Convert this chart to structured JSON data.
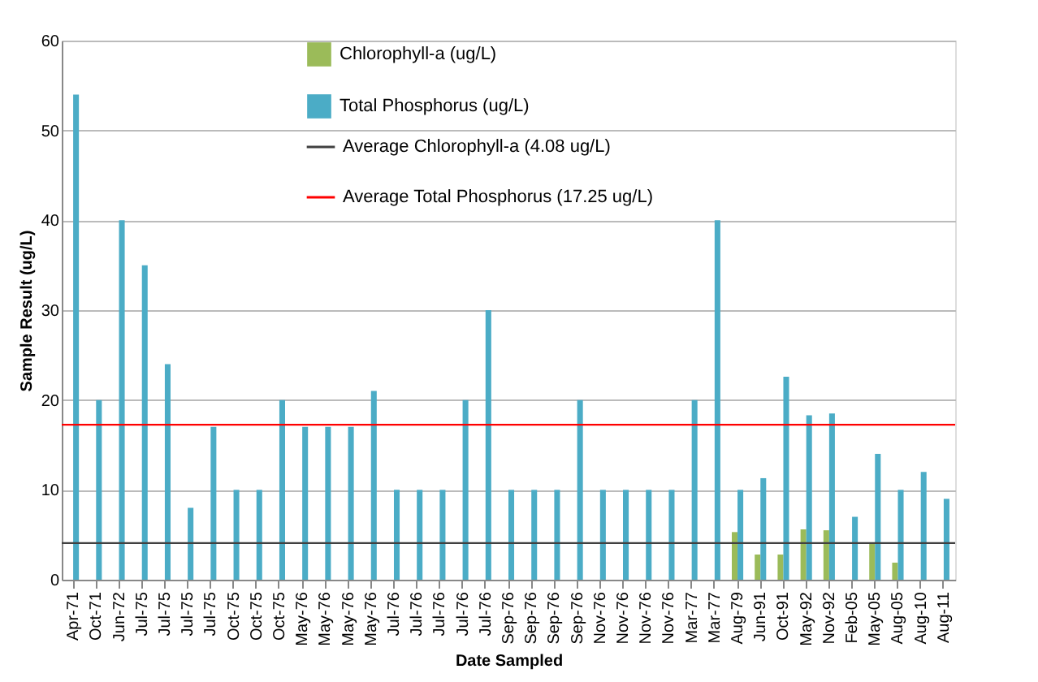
{
  "chart_data": {
    "type": "bar",
    "xlabel": "Date Sampled",
    "ylabel": "Sample Result (ug/L)",
    "categories": [
      "Apr-71",
      "Oct-71",
      "Jun-72",
      "Jul-75",
      "Jul-75",
      "Jul-75",
      "Jul-75",
      "Oct-75",
      "Oct-75",
      "Oct-75",
      "May-76",
      "May-76",
      "May-76",
      "May-76",
      "Jul-76",
      "Jul-76",
      "Jul-76",
      "Jul-76",
      "Jul-76",
      "Sep-76",
      "Sep-76",
      "Sep-76",
      "Sep-76",
      "Nov-76",
      "Nov-76",
      "Nov-76",
      "Nov-76",
      "Mar-77",
      "Mar-77",
      "Aug-79",
      "Jun-91",
      "Oct-91",
      "May-92",
      "Nov-92",
      "Feb-05",
      "May-05",
      "Aug-05",
      "Aug-10",
      "Aug-11"
    ],
    "series": [
      {
        "name": "Chlorophyll-a (ug/L)",
        "color": "#9bbb59",
        "values": [
          null,
          null,
          null,
          null,
          null,
          null,
          null,
          null,
          null,
          null,
          null,
          null,
          null,
          null,
          null,
          null,
          null,
          null,
          null,
          null,
          null,
          null,
          null,
          null,
          null,
          null,
          null,
          null,
          null,
          5.3,
          2.8,
          2.8,
          5.6,
          5.5,
          null,
          4.0,
          1.9,
          null,
          null
        ]
      },
      {
        "name": "Total Phosphorus (ug/L)",
        "color": "#4bacc6",
        "values": [
          54,
          20,
          40,
          35,
          24,
          8,
          17,
          10,
          10,
          20,
          17,
          17,
          17,
          21,
          10,
          10,
          10,
          20,
          30,
          10,
          10,
          10,
          20,
          10,
          10,
          10,
          10,
          20,
          40,
          10,
          11.3,
          22.6,
          18.3,
          18.5,
          7,
          14,
          10,
          12,
          9
        ]
      }
    ],
    "ref_lines": [
      {
        "axis": "y",
        "value": 4.08,
        "label": "Average Chlorophyll-a (4.08 ug/L)",
        "color": "#404040"
      },
      {
        "axis": "y",
        "value": 17.25,
        "label": "Average Total Phosphorus (17.25 ug/L)",
        "color": "#ff0000"
      }
    ],
    "ylim": [
      0,
      60
    ],
    "yticks": [
      0,
      10,
      20,
      30,
      40,
      50,
      60
    ],
    "grid": "y",
    "legend": "top"
  }
}
